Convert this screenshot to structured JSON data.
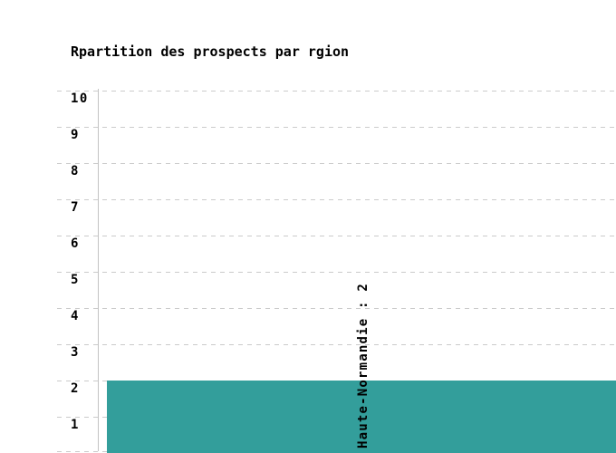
{
  "chart_data": {
    "type": "bar",
    "title": "Rpartition des prospects par rgion",
    "categories": [
      "Haute-Normandie"
    ],
    "values": [
      2
    ],
    "bar_labels": [
      "Haute-Normandie : 2"
    ],
    "xlabel": "",
    "ylabel": "",
    "ylim": [
      0,
      10
    ],
    "ytick_labels": [
      "10",
      "9",
      "8",
      "7",
      "6",
      "5",
      "4",
      "3",
      "2",
      "1"
    ],
    "grid": "horizontal-dashed",
    "legend": "none",
    "colors": {
      "bar": "#339E9B",
      "grid": "#CBCBCB",
      "axis": "#C3C3C3",
      "text": "#000000",
      "background": "#FFFFFF"
    }
  }
}
